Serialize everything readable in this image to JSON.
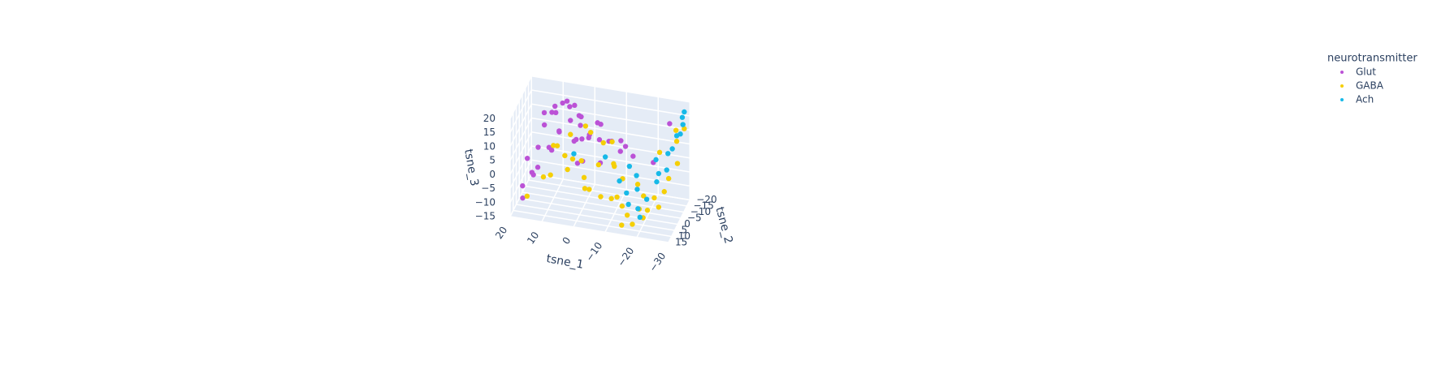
{
  "chart_data": {
    "type": "scatter3d",
    "xlabel": "tsne_1",
    "ylabel": "tsne_2",
    "zlabel": "tsne_3",
    "legend_title": "neurotransmitter",
    "legend_position": "upper right",
    "xlim": [
      -30,
      20
    ],
    "ylim": [
      -20,
      15
    ],
    "zlim": [
      -15,
      20
    ],
    "xticks": [
      {
        "value": -30,
        "label": "−30"
      },
      {
        "value": -20,
        "label": "−20"
      },
      {
        "value": -10,
        "label": "−10"
      },
      0,
      10,
      20
    ],
    "yticks": [
      {
        "value": -20,
        "label": "−20"
      },
      {
        "value": -15,
        "label": "−15"
      },
      {
        "value": -10,
        "label": "−10"
      },
      {
        "value": -5,
        "label": "−5"
      },
      0,
      5,
      10,
      15
    ],
    "zticks": [
      {
        "value": -15,
        "label": "−15"
      },
      {
        "value": -10,
        "label": "−10"
      },
      {
        "value": -5,
        "label": "−5"
      },
      0,
      5,
      10,
      15,
      20
    ],
    "series": [
      {
        "name": "Glut",
        "color": "#bb52d6",
        "x": [
          18,
          16,
          15,
          14,
          12,
          10,
          9,
          8,
          7,
          6,
          5,
          4,
          3,
          2,
          1,
          0,
          -2,
          -4,
          -6,
          -8,
          -10,
          -12,
          17,
          13,
          11,
          8,
          6,
          3,
          0,
          -3,
          15,
          12,
          9,
          5,
          2,
          -1,
          -5,
          -9,
          19,
          14,
          -14,
          -20,
          -24
        ],
        "y": [
          5,
          0,
          -5,
          -10,
          -12,
          -8,
          -14,
          -3,
          2,
          -10,
          -6,
          -15,
          -12,
          -8,
          -4,
          -10,
          -14,
          -9,
          -12,
          -6,
          -10,
          -8,
          10,
          6,
          -2,
          -16,
          -18,
          -5,
          0,
          -12,
          -15,
          -17,
          4,
          -12,
          -2,
          -6,
          -3,
          -16,
          -8,
          8,
          -10,
          -12,
          -18
        ],
        "z": [
          -8,
          -5,
          2,
          8,
          12,
          14,
          15,
          10,
          12,
          16,
          13,
          11,
          9,
          14,
          8,
          6,
          10,
          12,
          5,
          8,
          3,
          6,
          -10,
          0,
          4,
          15,
          13,
          7,
          2,
          5,
          10,
          12,
          6,
          3,
          0,
          9,
          1,
          4,
          -4,
          -2,
          2,
          0,
          12
        ]
      },
      {
        "name": "GABA",
        "color": "#f5cf06",
        "x": [
          16,
          12,
          10,
          8,
          6,
          4,
          2,
          0,
          -2,
          -4,
          -6,
          -8,
          -10,
          -12,
          -14,
          -16,
          -18,
          -20,
          -22,
          -24,
          -26,
          -28,
          -5,
          -9,
          -13,
          -17,
          -21,
          -25,
          -27,
          -15,
          -19,
          -23,
          5,
          1,
          -3,
          -7,
          -11,
          -29,
          -26,
          -22,
          9,
          -1
        ],
        "y": [
          8,
          2,
          -4,
          0,
          -2,
          4,
          6,
          2,
          8,
          10,
          5,
          12,
          0,
          6,
          8,
          10,
          12,
          4,
          8,
          0,
          -6,
          -10,
          -8,
          -4,
          2,
          -2,
          10,
          -4,
          -14,
          14,
          6,
          2,
          -6,
          -10,
          12,
          -12,
          10,
          -16,
          -18,
          -12,
          6,
          -8
        ],
        "z": [
          -10,
          -5,
          4,
          6,
          2,
          0,
          5,
          3,
          0,
          -3,
          4,
          -4,
          2,
          -6,
          -8,
          -10,
          -12,
          -5,
          -8,
          -10,
          -2,
          2,
          6,
          1,
          -1,
          -4,
          -10,
          -6,
          8,
          -12,
          -9,
          -6,
          8,
          10,
          -2,
          5,
          -5,
          12,
          10,
          4,
          -2,
          9
        ]
      },
      {
        "name": "Ach",
        "color": "#17b9e8",
        "x": [
          -12,
          -15,
          -17,
          -19,
          -21,
          -23,
          -25,
          -27,
          -28,
          -29,
          -26,
          -24,
          -20,
          -18,
          -16,
          -22,
          -28,
          -27,
          -25,
          -14,
          2,
          -6
        ],
        "y": [
          2,
          6,
          0,
          8,
          4,
          -2,
          -8,
          -14,
          -18,
          -16,
          -12,
          0,
          10,
          4,
          8,
          -6,
          -19,
          -20,
          -10,
          -4,
          4,
          -6
        ],
        "z": [
          -2,
          -4,
          0,
          -8,
          -6,
          -2,
          0,
          10,
          15,
          18,
          6,
          2,
          -10,
          -3,
          -7,
          4,
          12,
          8,
          5,
          1,
          6,
          2
        ]
      }
    ]
  }
}
